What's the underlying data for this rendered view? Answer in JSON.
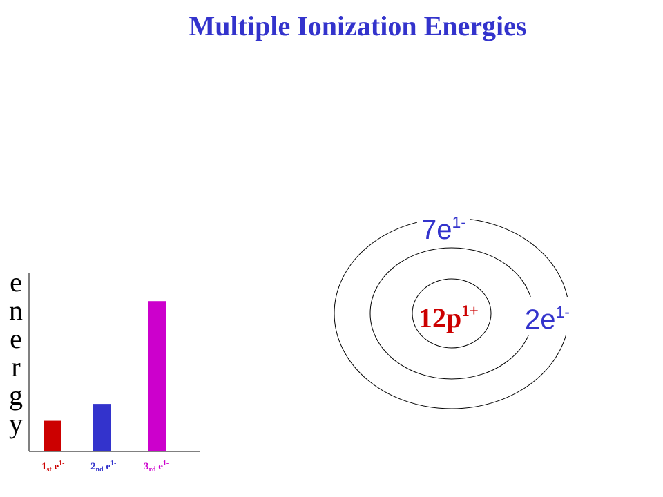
{
  "title": "Multiple Ionization Energies",
  "chart_data": {
    "type": "bar",
    "categories": [
      {
        "n": "1",
        "ord": "st",
        "e": "e",
        "charge": "1-"
      },
      {
        "n": "2",
        "ord": "nd",
        "e": "e",
        "charge": "1-"
      },
      {
        "n": "3",
        "ord": "rd",
        "e": "e",
        "charge": "1-"
      }
    ],
    "values": [
      1,
      1.55,
      4.9
    ],
    "ylabel_letters": [
      "e",
      "n",
      "e",
      "r",
      "g",
      "y"
    ],
    "ylim": [
      0,
      5.4
    ],
    "colors": [
      "#cc0000",
      "#3333cc",
      "#cc00cc"
    ],
    "grid": false,
    "legend": false
  },
  "atom": {
    "nucleus": {
      "text": "12p",
      "charge": "1+",
      "color": "#cc0000"
    },
    "inner_shell": {
      "text": "2e",
      "charge": "1-"
    },
    "outer_shell": {
      "text": "7e",
      "charge": "1-"
    },
    "label_color": "#3333cc"
  }
}
